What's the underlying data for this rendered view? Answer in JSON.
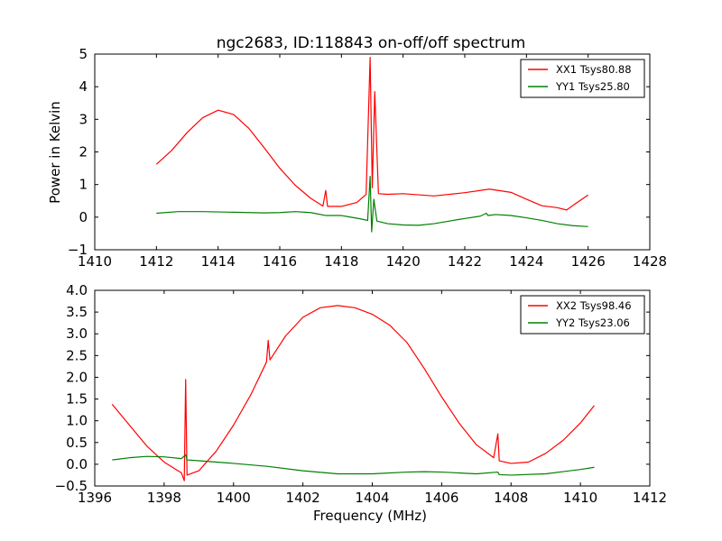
{
  "figure": {
    "title": "ngc2683, ID:118843 on-off/off spectrum",
    "ylabel": "Power in Kelvin",
    "xlabel": "Frequency (MHz)"
  },
  "colors": {
    "red": "#ff0000",
    "green": "#008000"
  },
  "chart_data": [
    {
      "type": "line",
      "title": "ngc2683, ID:118843 on-off/off spectrum",
      "ylabel": "Power in Kelvin",
      "xlabel": "",
      "xlim": [
        1410,
        1428
      ],
      "ylim": [
        -1,
        5
      ],
      "xticks": [
        1410,
        1412,
        1414,
        1416,
        1418,
        1420,
        1422,
        1424,
        1426,
        1428
      ],
      "yticks": [
        -1,
        0,
        1,
        2,
        3,
        4,
        5
      ],
      "legend_position": "top-right",
      "series": [
        {
          "name": "XX1 Tsys80.88",
          "color": "#ff0000",
          "points": [
            [
              1412.0,
              1.62
            ],
            [
              1412.5,
              2.05
            ],
            [
              1413.0,
              2.6
            ],
            [
              1413.5,
              3.05
            ],
            [
              1414.0,
              3.28
            ],
            [
              1414.5,
              3.15
            ],
            [
              1415.0,
              2.72
            ],
            [
              1415.5,
              2.12
            ],
            [
              1416.0,
              1.5
            ],
            [
              1416.5,
              0.98
            ],
            [
              1417.0,
              0.58
            ],
            [
              1417.4,
              0.34
            ],
            [
              1417.49,
              0.82
            ],
            [
              1417.55,
              0.33
            ],
            [
              1418.0,
              0.33
            ],
            [
              1418.5,
              0.45
            ],
            [
              1418.8,
              0.7
            ],
            [
              1418.93,
              4.9
            ],
            [
              1419.0,
              0.9
            ],
            [
              1419.08,
              3.85
            ],
            [
              1419.2,
              0.72
            ],
            [
              1419.5,
              0.7
            ],
            [
              1420.0,
              0.72
            ],
            [
              1421.0,
              0.65
            ],
            [
              1422.0,
              0.75
            ],
            [
              1422.8,
              0.86
            ],
            [
              1423.5,
              0.76
            ],
            [
              1424.0,
              0.55
            ],
            [
              1424.5,
              0.35
            ],
            [
              1425.0,
              0.29
            ],
            [
              1425.3,
              0.22
            ],
            [
              1425.6,
              0.42
            ],
            [
              1426.0,
              0.68
            ]
          ]
        },
        {
          "name": "YY1 Tsys25.80",
          "color": "#008000",
          "points": [
            [
              1412.0,
              0.12
            ],
            [
              1412.7,
              0.17
            ],
            [
              1413.5,
              0.17
            ],
            [
              1414.5,
              0.15
            ],
            [
              1415.5,
              0.13
            ],
            [
              1416.0,
              0.14
            ],
            [
              1416.5,
              0.17
            ],
            [
              1417.0,
              0.14
            ],
            [
              1417.5,
              0.05
            ],
            [
              1418.0,
              0.05
            ],
            [
              1418.6,
              -0.05
            ],
            [
              1418.85,
              -0.1
            ],
            [
              1418.93,
              1.25
            ],
            [
              1418.98,
              -0.45
            ],
            [
              1419.05,
              0.55
            ],
            [
              1419.15,
              -0.12
            ],
            [
              1419.5,
              -0.2
            ],
            [
              1420.0,
              -0.24
            ],
            [
              1420.5,
              -0.25
            ],
            [
              1421.0,
              -0.2
            ],
            [
              1421.5,
              -0.12
            ],
            [
              1422.0,
              -0.04
            ],
            [
              1422.5,
              0.03
            ],
            [
              1422.7,
              0.12
            ],
            [
              1422.75,
              0.05
            ],
            [
              1423.0,
              0.08
            ],
            [
              1423.5,
              0.05
            ],
            [
              1424.0,
              -0.02
            ],
            [
              1424.5,
              -0.1
            ],
            [
              1425.0,
              -0.2
            ],
            [
              1425.5,
              -0.26
            ],
            [
              1426.0,
              -0.29
            ]
          ]
        }
      ]
    },
    {
      "type": "line",
      "title": "",
      "ylabel": "",
      "xlabel": "Frequency (MHz)",
      "xlim": [
        1396,
        1412
      ],
      "ylim": [
        -0.5,
        4.0
      ],
      "xticks": [
        1396,
        1398,
        1400,
        1402,
        1404,
        1406,
        1408,
        1410,
        1412
      ],
      "yticks": [
        -0.5,
        0.0,
        0.5,
        1.0,
        1.5,
        2.0,
        2.5,
        3.0,
        3.5,
        4.0
      ],
      "legend_position": "top-right",
      "series": [
        {
          "name": "XX2 Tsys98.46",
          "color": "#ff0000",
          "points": [
            [
              1396.5,
              1.38
            ],
            [
              1397.0,
              0.9
            ],
            [
              1397.5,
              0.42
            ],
            [
              1398.0,
              0.05
            ],
            [
              1398.5,
              -0.2
            ],
            [
              1398.58,
              -0.38
            ],
            [
              1398.62,
              1.95
            ],
            [
              1398.66,
              -0.25
            ],
            [
              1399.0,
              -0.15
            ],
            [
              1399.5,
              0.3
            ],
            [
              1400.0,
              0.9
            ],
            [
              1400.5,
              1.6
            ],
            [
              1400.95,
              2.35
            ],
            [
              1401.0,
              2.85
            ],
            [
              1401.05,
              2.4
            ],
            [
              1401.5,
              2.95
            ],
            [
              1402.0,
              3.38
            ],
            [
              1402.5,
              3.6
            ],
            [
              1403.0,
              3.65
            ],
            [
              1403.5,
              3.6
            ],
            [
              1404.0,
              3.45
            ],
            [
              1404.5,
              3.2
            ],
            [
              1405.0,
              2.8
            ],
            [
              1405.5,
              2.2
            ],
            [
              1406.0,
              1.55
            ],
            [
              1406.5,
              0.95
            ],
            [
              1407.0,
              0.45
            ],
            [
              1407.5,
              0.15
            ],
            [
              1407.62,
              0.7
            ],
            [
              1407.66,
              0.08
            ],
            [
              1408.0,
              0.02
            ],
            [
              1408.5,
              0.05
            ],
            [
              1409.0,
              0.25
            ],
            [
              1409.5,
              0.55
            ],
            [
              1410.0,
              0.95
            ],
            [
              1410.4,
              1.35
            ]
          ]
        },
        {
          "name": "YY2 Tsys23.06",
          "color": "#008000",
          "points": [
            [
              1396.5,
              0.1
            ],
            [
              1397.0,
              0.15
            ],
            [
              1397.5,
              0.18
            ],
            [
              1398.0,
              0.17
            ],
            [
              1398.5,
              0.13
            ],
            [
              1398.62,
              0.22
            ],
            [
              1398.66,
              0.1
            ],
            [
              1399.0,
              0.08
            ],
            [
              1400.0,
              0.02
            ],
            [
              1401.0,
              -0.05
            ],
            [
              1402.0,
              -0.15
            ],
            [
              1403.0,
              -0.22
            ],
            [
              1404.0,
              -0.22
            ],
            [
              1405.0,
              -0.18
            ],
            [
              1405.5,
              -0.17
            ],
            [
              1406.0,
              -0.18
            ],
            [
              1407.0,
              -0.22
            ],
            [
              1407.62,
              -0.18
            ],
            [
              1407.66,
              -0.24
            ],
            [
              1408.0,
              -0.25
            ],
            [
              1409.0,
              -0.22
            ],
            [
              1409.5,
              -0.17
            ],
            [
              1410.0,
              -0.12
            ],
            [
              1410.4,
              -0.07
            ]
          ]
        }
      ]
    }
  ]
}
